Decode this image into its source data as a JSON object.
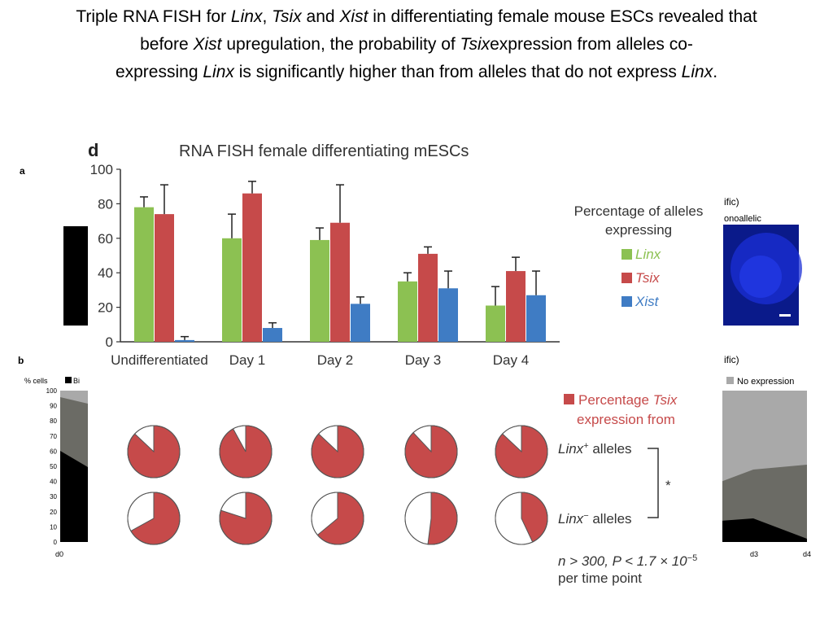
{
  "slide": {
    "title_parts": [
      {
        "text": "Triple RNA FISH for ",
        "italic": false
      },
      {
        "text": "Linx",
        "italic": true
      },
      {
        "text": ", ",
        "italic": false
      },
      {
        "text": "Tsix",
        "italic": true
      },
      {
        "text": " and ",
        "italic": false
      },
      {
        "text": "Xist",
        "italic": true
      },
      {
        "text": " in differentiating female mouse ESCs revealed that before ",
        "italic": false
      },
      {
        "text": "Xist",
        "italic": true
      },
      {
        "text": " upregulation, the probability of ",
        "italic": false
      },
      {
        "text": "Tsix",
        "italic": true
      },
      {
        "text": "expression from alleles co-expressing ",
        "italic": false
      },
      {
        "text": "Linx",
        "italic": true
      },
      {
        "text": " is significantly higher than from alleles that do not express ",
        "italic": false
      },
      {
        "text": "Linx",
        "italic": true
      },
      {
        "text": ".",
        "italic": false
      }
    ]
  },
  "background_panels": {
    "panel_a_letter": "a",
    "panel_b_letter": "b",
    "right_top_fragment": "ific)",
    "right_top_fragment2": "onoallelic",
    "right_bottom_fragment": "ific)",
    "no_expression_label": "No expression",
    "pct_cells_label": "% cells",
    "bi_label": "Bi",
    "left_ticks": [
      "100",
      "90",
      "80",
      "70",
      "60",
      "50",
      "40",
      "30",
      "20",
      "10",
      "0"
    ],
    "left_x_tick": "d0",
    "right_x_ticks": [
      "d3",
      "d4"
    ],
    "colors": {
      "black": "#000000",
      "dark_gray": "#6b6b65",
      "light_gray": "#a9a9a9"
    }
  },
  "chart_data": [
    {
      "type": "bar",
      "panel_letter": "d",
      "title": "RNA FISH female differentiating mESCs",
      "categories": [
        "Undifferentiated",
        "Day 1",
        "Day 2",
        "Day 3",
        "Day 4"
      ],
      "series": [
        {
          "name": "Linx",
          "color": "#8cc152",
          "values": [
            78,
            60,
            59,
            35,
            21
          ],
          "errors": [
            6,
            14,
            7,
            5,
            11
          ]
        },
        {
          "name": "Tsix",
          "color": "#c64a4a",
          "values": [
            74,
            86,
            69,
            51,
            41
          ],
          "errors": [
            17,
            7,
            22,
            4,
            8
          ]
        },
        {
          "name": "Xist",
          "color": "#3f7cc4",
          "values": [
            1,
            8,
            22,
            31,
            27
          ],
          "errors": [
            2,
            3,
            4,
            10,
            14
          ]
        }
      ],
      "ylim": [
        0,
        100
      ],
      "yticks": [
        0,
        20,
        40,
        60,
        80,
        100
      ],
      "legend_title": "Percentage of alleles expressing",
      "legend_position": "right"
    },
    {
      "type": "pie",
      "legend_prefix": "Percentage ",
      "legend_italic": "Tsix",
      "legend_line2": "expression from",
      "legend_color": "#c64a4a",
      "row_labels": [
        {
          "italic": "Linx",
          "sup": "+",
          "rest": " alleles"
        },
        {
          "italic": "Linx",
          "sup": "−",
          "rest": " alleles"
        }
      ],
      "significance": "*",
      "columns": [
        "Undifferentiated",
        "Day 1",
        "Day 2",
        "Day 3",
        "Day 4"
      ],
      "rows": [
        {
          "name": "Linx+ alleles",
          "values": [
            0.87,
            0.92,
            0.87,
            0.88,
            0.87
          ]
        },
        {
          "name": "Linx- alleles",
          "values": [
            0.67,
            0.8,
            0.64,
            0.52,
            0.43
          ]
        }
      ],
      "stat_line1": "n > 300, P < 1.7 × 10",
      "stat_exp": "−5",
      "stat_line2": "per time point"
    }
  ]
}
